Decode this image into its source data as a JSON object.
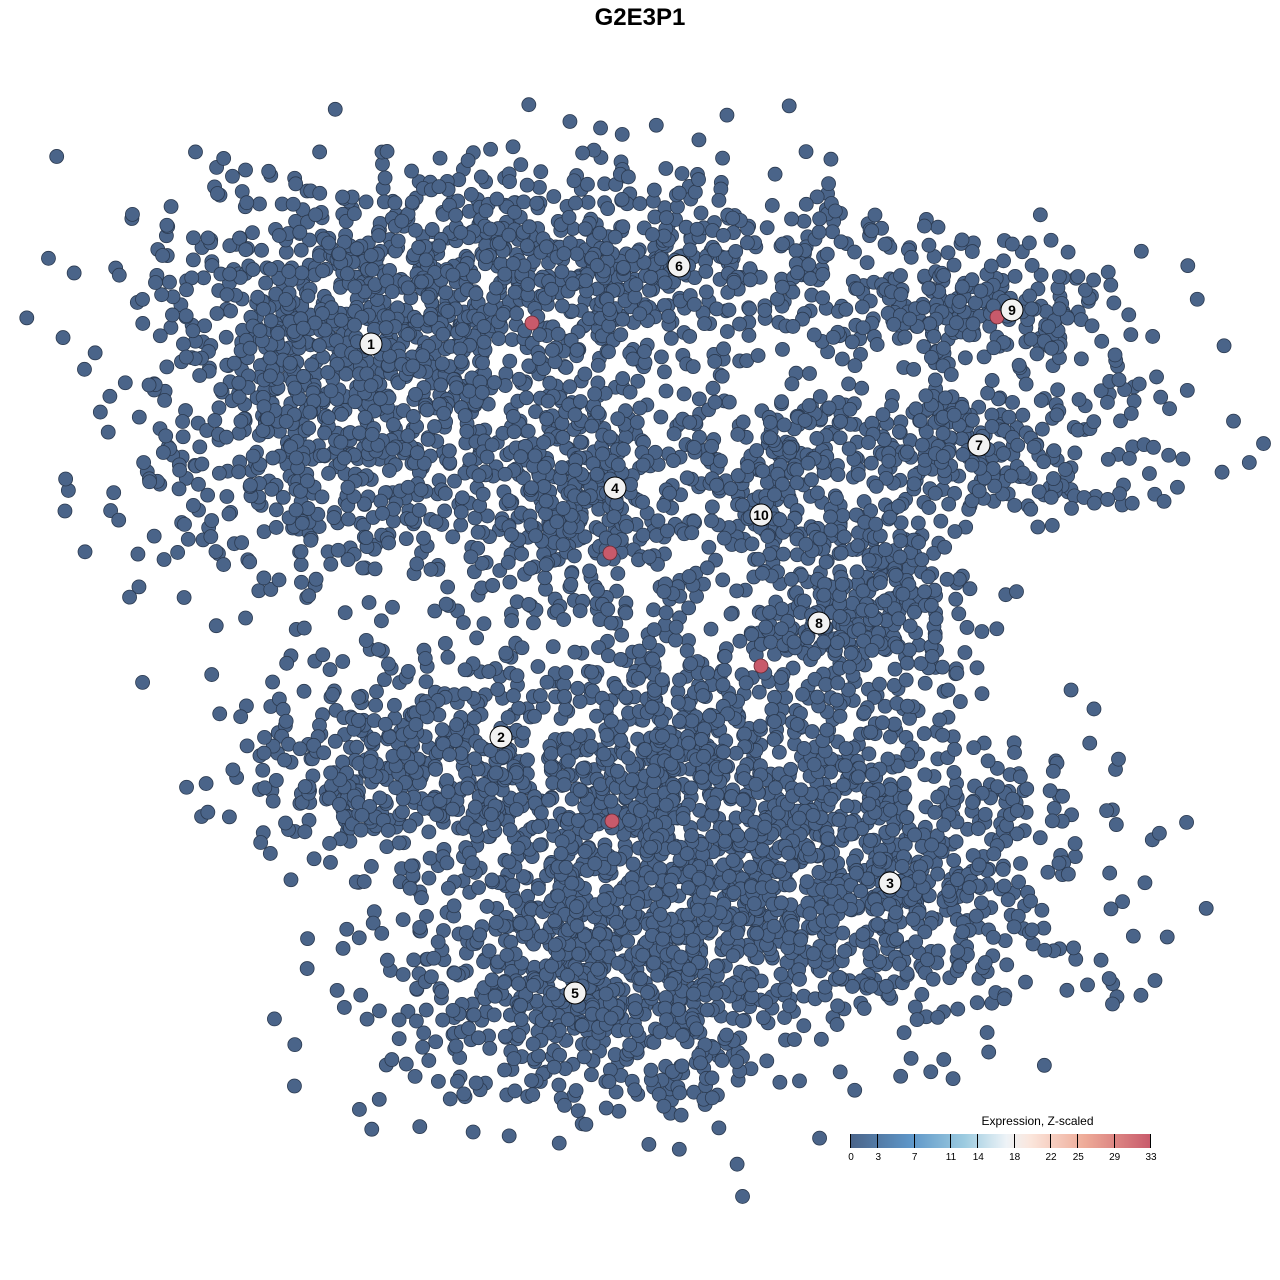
{
  "chart_data": {
    "type": "scatter",
    "title": "G2E3P1",
    "xlabel": "",
    "ylabel": "",
    "grid": false,
    "point_color_default": "#4a6489",
    "point_color_high": "#c85a6b",
    "clusters": [
      {
        "label": "1",
        "label_pos": [
          -26.9,
          29.6
        ],
        "center": [
          -31,
          24
        ],
        "spread": [
          11,
          11
        ],
        "n": 900
      },
      {
        "label": "6",
        "label_pos": [
          3.9,
          37.4
        ],
        "center": [
          -8,
          37
        ],
        "spread": [
          20,
          5.5
        ],
        "n": 900
      },
      {
        "label": "4",
        "label_pos": [
          -2.5,
          15.2
        ],
        "center": [
          -6,
          15
        ],
        "spread": [
          7.5,
          7
        ],
        "n": 450
      },
      {
        "label": "9",
        "label_pos": [
          37.2,
          33.0
        ],
        "center": [
          34,
          33
        ],
        "spread": [
          9,
          4
        ],
        "n": 220
      },
      {
        "label": "7",
        "label_pos": [
          33.9,
          19.5
        ],
        "center": [
          33,
          19
        ],
        "spread": [
          12,
          4
        ],
        "n": 320
      },
      {
        "label": "10",
        "label_pos": [
          12.1,
          12.5
        ],
        "center": [
          13,
          16
        ],
        "spread": [
          5,
          5
        ],
        "n": 160
      },
      {
        "label": "8",
        "label_pos": [
          17.9,
          1.7
        ],
        "center": [
          22,
          3
        ],
        "spread": [
          6,
          6
        ],
        "n": 350
      },
      {
        "label": "2",
        "label_pos": [
          -13.9,
          -9.7
        ],
        "center": [
          -24,
          -13
        ],
        "spread": [
          9,
          6
        ],
        "n": 420
      },
      {
        "label": "5",
        "label_pos": [
          -6.5,
          -35.3
        ],
        "center": [
          -4,
          -34
        ],
        "spread": [
          12,
          8
        ],
        "n": 900
      },
      {
        "label": "3",
        "label_pos": [
          25.0,
          -24.3
        ],
        "center": [
          25,
          -23
        ],
        "spread": [
          12,
          8
        ],
        "n": 700
      },
      {
        "label": "",
        "label_pos": null,
        "center": [
          4,
          -14
        ],
        "spread": [
          11,
          10
        ],
        "n": 900
      }
    ],
    "high_expression_points": [
      [
        -10.8,
        31.7
      ],
      [
        -3.0,
        8.7
      ],
      [
        35.7,
        32.3
      ],
      [
        12.1,
        -2.6
      ],
      [
        -2.8,
        -18.1
      ]
    ],
    "legend": {
      "title": "Expression, Z-scaled",
      "ticks": [
        "0",
        "3",
        "7",
        "11",
        "14",
        "18",
        "22",
        "25",
        "29",
        "33"
      ],
      "range": [
        0,
        33
      ],
      "colors": [
        "#4a6489",
        "#5e96c8",
        "#9ccbe0",
        "#eef3f7",
        "#fbe6dc",
        "#eeab98",
        "#c85a6b"
      ]
    }
  }
}
